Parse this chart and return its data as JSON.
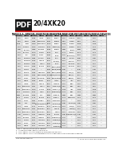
{
  "title": "TABLE 5-1: SPECIAL FUNCTION REGISTER MAP FOR PIC18F2XK20/4XK20 DEVICES",
  "header_pdf": "20/4XK20",
  "col_headers": [
    "Address",
    "Name",
    "Address",
    "Name",
    "Address",
    "Name"
  ],
  "rows": [
    [
      "FFFh",
      "TOSU",
      "FDFh",
      "INDF2",
      "FBFh",
      "PORTA"
    ],
    [
      "FFEh",
      "TOSH",
      "FDEh",
      "POSTINC2",
      "FBEh",
      "PORTB"
    ],
    [
      "FFDh",
      "TOSL",
      "FDDh",
      "POSTDEC2",
      "FBDh",
      "PORTC"
    ],
    [
      "FFCh",
      "STKPTR",
      "FDCh",
      "PREINC2",
      "FBCh",
      "PORTD(3)"
    ],
    [
      "FFBh",
      "PCLATU",
      "FDBh",
      "PLUSW2",
      "FBBh",
      "PORTE"
    ],
    [
      "FFAh",
      "PCLATH",
      "FDAh",
      "FSR2H",
      "FBAh",
      "LATA"
    ],
    [
      "FF9h",
      "PCL",
      "FD9h",
      "FSR2L",
      "FB9h",
      "LATB"
    ],
    [
      "FF8h",
      "TBLPTRU",
      "FD8h",
      "STATUS",
      "FB8h",
      "LATC"
    ],
    [
      "FF7h",
      "TBLPTRH",
      "FD7h",
      "TMR0H",
      "FB7h",
      "LATD(3)"
    ],
    [
      "FF6h",
      "TBLPTRL",
      "FD6h",
      "TMR0L",
      "FB6h",
      "LATE"
    ],
    [
      "FF5h",
      "PRODH",
      "FD5h",
      "T0CON",
      "FB5h",
      "DDRA/TRISA"
    ],
    [
      "FF4h",
      "PRODL",
      "FD4h",
      "---",
      "FB4h",
      "DDRB/TRISB"
    ],
    [
      "FF3h",
      "TABLAT",
      "FD3h",
      "OSCCON",
      "FB3h",
      "DDRC/TRISC"
    ],
    [
      "FF2h",
      "FSR2H",
      "FD2h",
      "OSCCTUNE",
      "FB2h",
      "DDRD/TRISD(3)"
    ],
    [
      "FF1h",
      "FSR2L",
      "FD1h",
      "WDTCON",
      "FB1h",
      "DDRE/TRISE"
    ],
    [
      "FF0h",
      "WREG",
      "FD0h",
      "RCON",
      "FB0h",
      "ANSEL"
    ],
    [
      "FEFh",
      "INDF0",
      "FCFh",
      "TMR1H",
      "FAFh",
      "ANSELH"
    ],
    [
      "FEEh",
      "POSTINC0",
      "FCEh",
      "TMR1L",
      "FAEh",
      "CCPR2H(2)"
    ],
    [
      "FEDh",
      "POSTDEC0",
      "FCDh",
      "T1CON",
      "FADh",
      "CCPR2L(2)"
    ],
    [
      "FECh",
      "PREINC0",
      "FCCh",
      "TMR2",
      "FACh",
      "CCP2CON(2)"
    ],
    [
      "FEBh",
      "PLUSW0",
      "FCBh",
      "PR2",
      "FABh",
      "CCPR1H"
    ],
    [
      "FEAh",
      "FSR1H",
      "FCAh",
      "T2CON",
      "FAAh",
      "CCPR1L"
    ],
    [
      "FE9h",
      "FSR1L",
      "FC9h",
      "SSPBUF",
      "FA9h",
      "CCP1CON"
    ],
    [
      "FE8h",
      "BSR",
      "FC8h",
      "SSPADD/SSPMSK",
      "FA8h",
      "RCAP3H(2)"
    ],
    [
      "FE7h",
      "INDF1",
      "FC7h",
      "SSPSTAT",
      "FA7h",
      "RCAP3L(2)"
    ],
    [
      "FE6h",
      "POSTINC1",
      "FC6h",
      "SSPCON1",
      "FA6h",
      "TMR3H"
    ],
    [
      "FE5h",
      "POSTDEC1",
      "FC5h",
      "SSPCON2",
      "FA5h",
      "TMR3L"
    ],
    [
      "FE4h",
      "PREINC1",
      "FC4h",
      "ADRESH",
      "FA4h",
      "T3CON"
    ],
    [
      "FE3h",
      "PLUSW1",
      "FC3h",
      "ADRESL",
      "FA3h",
      "SPBRGH2(2)"
    ],
    [
      "FE2h",
      "FSR1H",
      "FC2h",
      "ADCON0",
      "FA2h",
      "SPBRG2(2)"
    ],
    [
      "FE1h",
      "FSR1L",
      "FC1h",
      "ADCON1",
      "FA1h",
      "RCREG2(2)"
    ],
    [
      "FE0h",
      "WREG",
      "FC0h",
      "ADCON2",
      "FA0h",
      "TXREG2(2)"
    ]
  ],
  "rows2": [
    [
      "F9Fh",
      "SPBRGH",
      "F7Fh",
      "---",
      "F5Fh",
      "---"
    ],
    [
      "F9Eh",
      "SPBRG",
      "F7Eh",
      "---",
      "F5Eh",
      "---"
    ],
    [
      "F9Dh",
      "RCREG",
      "F7Dh",
      "---",
      "F5Dh",
      "---"
    ],
    [
      "F9Ch",
      "TXREG",
      "F7Ch",
      "---",
      "F5Ch",
      "---"
    ],
    [
      "F9Bh",
      "TXSTA",
      "F7Bh",
      "---",
      "F5Bh",
      "---"
    ],
    [
      "F9Ah",
      "RCSTA",
      "F7Ah",
      "---",
      "F5Ah",
      "---"
    ],
    [
      "F99h",
      "EEADRH(1)",
      "F79h",
      "---",
      "F59h",
      "---"
    ],
    [
      "F98h",
      "EEADR",
      "F78h",
      "---",
      "F58h",
      "---"
    ],
    [
      "F97h",
      "EEDATA",
      "F77h",
      "---",
      "F57h",
      "---"
    ],
    [
      "F96h",
      "EECON2",
      "F76h",
      "---",
      "F56h",
      "---"
    ],
    [
      "F95h",
      "EECON1",
      "F75h",
      "---",
      "F55h",
      "---"
    ],
    [
      "F94h",
      "---",
      "F74h",
      "---",
      "F54h",
      "---"
    ],
    [
      "F93h",
      "IPR3(2)",
      "F73h",
      "---",
      "F53h",
      "---"
    ],
    [
      "F92h",
      "PIR3(2)",
      "F72h",
      "---",
      "F52h",
      "---"
    ],
    [
      "F91h",
      "PIE3(2)",
      "F71h",
      "---",
      "F51h",
      "---"
    ],
    [
      "F90h",
      "IPR2",
      "F70h",
      "---",
      "F50h",
      "---"
    ],
    [
      "F8Fh",
      "PIR2",
      "F6Fh",
      "---",
      "F4Fh",
      "---"
    ],
    [
      "F8Eh",
      "PIE2",
      "F6Eh",
      "---",
      "F4Eh",
      "---"
    ],
    [
      "F8Dh",
      "IPR1",
      "F6Dh",
      "---",
      "F4Dh",
      "---"
    ],
    [
      "F8Ch",
      "PIR1",
      "F6Ch",
      "---",
      "F4Ch",
      "---"
    ],
    [
      "F8Bh",
      "PIE1",
      "F6Bh",
      "---",
      "F4Bh",
      "---"
    ],
    [
      "F8Ah",
      "OSCTUNE",
      "F6Ah",
      "---",
      "F4Ah",
      "---"
    ],
    [
      "F89h",
      "---",
      "F69h",
      "---",
      "F49h",
      "---"
    ],
    [
      "F88h",
      "T4CON(2)",
      "F68h",
      "---",
      "F48h",
      "---"
    ],
    [
      "F87h",
      "PR4(2)",
      "F67h",
      "---",
      "F47h",
      "---"
    ],
    [
      "F86h",
      "TMR4(2)",
      "F66h",
      "---",
      "F46h",
      "---"
    ],
    [
      "F85h",
      "T3GCON",
      "F65h",
      "---",
      "F45h",
      "---"
    ],
    [
      "F84h",
      "CCPTMRS0(2)",
      "F64h",
      "---",
      "F44h",
      "---"
    ],
    [
      "F83h",
      "---",
      "F63h",
      "---",
      "F43h",
      "---"
    ],
    [
      "F82h",
      "---",
      "F62h",
      "---",
      "F42h",
      "---"
    ],
    [
      "F81h",
      "---",
      "F61h",
      "---",
      "F41h",
      "---"
    ],
    [
      "F80h",
      "---",
      "F60h",
      "---",
      "F40h",
      "---"
    ]
  ],
  "notes": [
    "Note 1:  This is not a physical register.",
    "2:  Unimplemented registers read as '0'.",
    "3:  This register is not available on PIC18F2XK20 devices.",
    "4:  This register is only implemented in the PIC18F46K20 and PIC18F26K20 devices."
  ],
  "footer_left": "DS41303E-page 78",
  "footer_right": "© 2010 Microchip Technology Inc.",
  "bg_color": "#ffffff",
  "table_line_color": "#aaaaaa",
  "header_col_bg": "#cccccc",
  "addr_col_bg": "#e8e8e8",
  "name_col_bg": "#f5f5f5",
  "name_col_alt_bg": "#ebebeb"
}
